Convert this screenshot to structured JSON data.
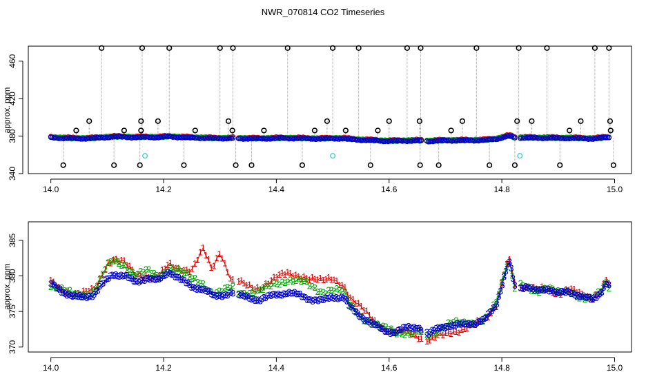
{
  "title": "NWR_070814  CO2 Timeseries",
  "chart_data": [
    {
      "type": "scatter",
      "name": "top-panel",
      "ylabel": "approx. ppm",
      "xlim": [
        13.96,
        15.03
      ],
      "ylim": [
        340,
        476
      ],
      "xticks": [
        14.0,
        14.2,
        14.4,
        14.6,
        14.8,
        15.0
      ],
      "xtick_labels": [
        "14.0",
        "14.2",
        "14.4",
        "14.6",
        "14.8",
        "15.0"
      ],
      "yticks": [
        340,
        380,
        420,
        460
      ],
      "ytick_labels": [
        "340",
        "380",
        "420",
        "460"
      ],
      "cal_high": {
        "y": 474,
        "x": [
          14.09,
          14.162,
          14.21,
          14.3,
          14.323,
          14.42,
          14.5,
          14.546,
          14.632,
          14.656,
          14.755,
          14.83,
          14.88,
          14.965,
          14.99
        ],
        "color": "#000000"
      },
      "cal_mid": {
        "y": 396,
        "x": [
          14.068,
          14.16,
          14.19,
          14.315,
          14.49,
          14.6,
          14.654,
          14.73,
          14.827,
          14.853,
          14.94,
          14.992
        ],
        "color": "#000000"
      },
      "cal_mid2": {
        "y": 386,
        "x": [
          14.045,
          14.13,
          14.16,
          14.256,
          14.322,
          14.378,
          14.468,
          14.523,
          14.58,
          14.71,
          14.92,
          14.993
        ],
        "color": "#000000"
      },
      "cal_low": {
        "y": 349,
        "x": [
          14.022,
          14.112,
          14.158,
          14.236,
          14.328,
          14.356,
          14.446,
          14.567,
          14.655,
          14.688,
          14.778,
          14.823,
          14.903,
          14.998
        ],
        "color": "#000000"
      },
      "cyan_points": {
        "x": [
          14.167,
          14.5,
          14.832
        ],
        "y": [
          359,
          359,
          359
        ],
        "color": "#40d0d0"
      },
      "segments": [
        [
          14.0,
          14.323
        ],
        [
          14.333,
          14.657
        ],
        [
          14.667,
          14.823
        ],
        [
          14.833,
          14.99
        ]
      ],
      "series": [
        {
          "name": "line1",
          "color": "#dd0000"
        },
        {
          "name": "line2",
          "color": "#00aa00"
        },
        {
          "name": "line3",
          "color": "#0000cc"
        }
      ]
    },
    {
      "type": "line",
      "name": "bottom-panel",
      "ylabel": "approx. ppm",
      "xlim": [
        13.96,
        15.03
      ],
      "ylim": [
        369.3,
        387.6
      ],
      "xticks": [
        14.0,
        14.2,
        14.4,
        14.6,
        14.8,
        15.0
      ],
      "xtick_labels": [
        "14.0",
        "14.2",
        "14.4",
        "14.6",
        "14.8",
        "15.0"
      ],
      "yticks": [
        370,
        375,
        380,
        385
      ],
      "ytick_labels": [
        "370",
        "375",
        "380",
        "385"
      ],
      "series": [
        {
          "name": "1",
          "label": "1",
          "color": "#dd0000"
        },
        {
          "name": "2",
          "label": "2",
          "color": "#00aa00"
        },
        {
          "name": "3",
          "label": "3",
          "color": "#0000cc"
        }
      ],
      "base_knots": [
        [
          14.0,
          378.8
        ],
        [
          14.02,
          377.8
        ],
        [
          14.04,
          377.0
        ],
        [
          14.055,
          376.9
        ],
        [
          14.075,
          377.3
        ],
        [
          14.09,
          378.6
        ],
        [
          14.11,
          380.2
        ],
        [
          14.13,
          380.0
        ],
        [
          14.15,
          379.0
        ],
        [
          14.17,
          379.7
        ],
        [
          14.19,
          379.2
        ],
        [
          14.21,
          380.6
        ],
        [
          14.23,
          379.4
        ],
        [
          14.25,
          378.4
        ],
        [
          14.27,
          378.1
        ],
        [
          14.29,
          377.0
        ],
        [
          14.32,
          377.6
        ],
        [
          14.34,
          377.0
        ],
        [
          14.37,
          376.6
        ],
        [
          14.4,
          377.3
        ],
        [
          14.42,
          377.6
        ],
        [
          14.44,
          377.2
        ],
        [
          14.46,
          376.7
        ],
        [
          14.48,
          376.4
        ],
        [
          14.5,
          377.0
        ],
        [
          14.52,
          376.9
        ],
        [
          14.53,
          375.5
        ],
        [
          14.55,
          374.3
        ],
        [
          14.57,
          373.2
        ],
        [
          14.59,
          372.3
        ],
        [
          14.61,
          372.0
        ],
        [
          14.63,
          372.6
        ],
        [
          14.65,
          372.8
        ],
        [
          14.67,
          371.8
        ],
        [
          14.69,
          372.6
        ],
        [
          14.71,
          373.1
        ],
        [
          14.73,
          373.0
        ],
        [
          14.75,
          373.3
        ],
        [
          14.77,
          373.8
        ],
        [
          14.79,
          375.8
        ],
        [
          14.81,
          381.6
        ],
        [
          14.815,
          381.8
        ],
        [
          14.822,
          378.3
        ],
        [
          14.84,
          378.4
        ],
        [
          14.86,
          377.8
        ],
        [
          14.88,
          378.2
        ],
        [
          14.9,
          377.4
        ],
        [
          14.92,
          377.8
        ],
        [
          14.94,
          377.0
        ],
        [
          14.96,
          376.6
        ],
        [
          14.975,
          377.6
        ],
        [
          14.985,
          379.0
        ],
        [
          14.99,
          378.5
        ]
      ],
      "offset1": [
        [
          14.0,
          0.3
        ],
        [
          14.08,
          0.6
        ],
        [
          14.1,
          2.4
        ],
        [
          14.13,
          1.8
        ],
        [
          14.17,
          0.4
        ],
        [
          14.22,
          1.0
        ],
        [
          14.25,
          2.6
        ],
        [
          14.27,
          5.6
        ],
        [
          14.285,
          3.5
        ],
        [
          14.3,
          6.2
        ],
        [
          14.32,
          2.0
        ],
        [
          14.36,
          1.6
        ],
        [
          14.4,
          2.4
        ],
        [
          14.45,
          3.0
        ],
        [
          14.5,
          2.6
        ],
        [
          14.53,
          1.5
        ],
        [
          14.6,
          0.2
        ],
        [
          14.65,
          -1.2
        ],
        [
          14.7,
          -1.0
        ],
        [
          14.75,
          -0.3
        ],
        [
          14.8,
          0.4
        ],
        [
          14.83,
          0.0
        ],
        [
          14.99,
          0.4
        ]
      ],
      "offset2": [
        [
          14.0,
          0.0
        ],
        [
          14.08,
          0.6
        ],
        [
          14.1,
          1.9
        ],
        [
          14.16,
          1.1
        ],
        [
          14.2,
          0.4
        ],
        [
          14.23,
          1.3
        ],
        [
          14.28,
          0.6
        ],
        [
          14.32,
          0.6
        ],
        [
          14.36,
          0.8
        ],
        [
          14.4,
          1.7
        ],
        [
          14.45,
          2.0
        ],
        [
          14.5,
          1.1
        ],
        [
          14.55,
          0.0
        ],
        [
          14.6,
          0.3
        ],
        [
          14.64,
          -0.8
        ],
        [
          14.7,
          0.2
        ],
        [
          14.8,
          0.2
        ],
        [
          14.99,
          0.0
        ]
      ]
    }
  ]
}
